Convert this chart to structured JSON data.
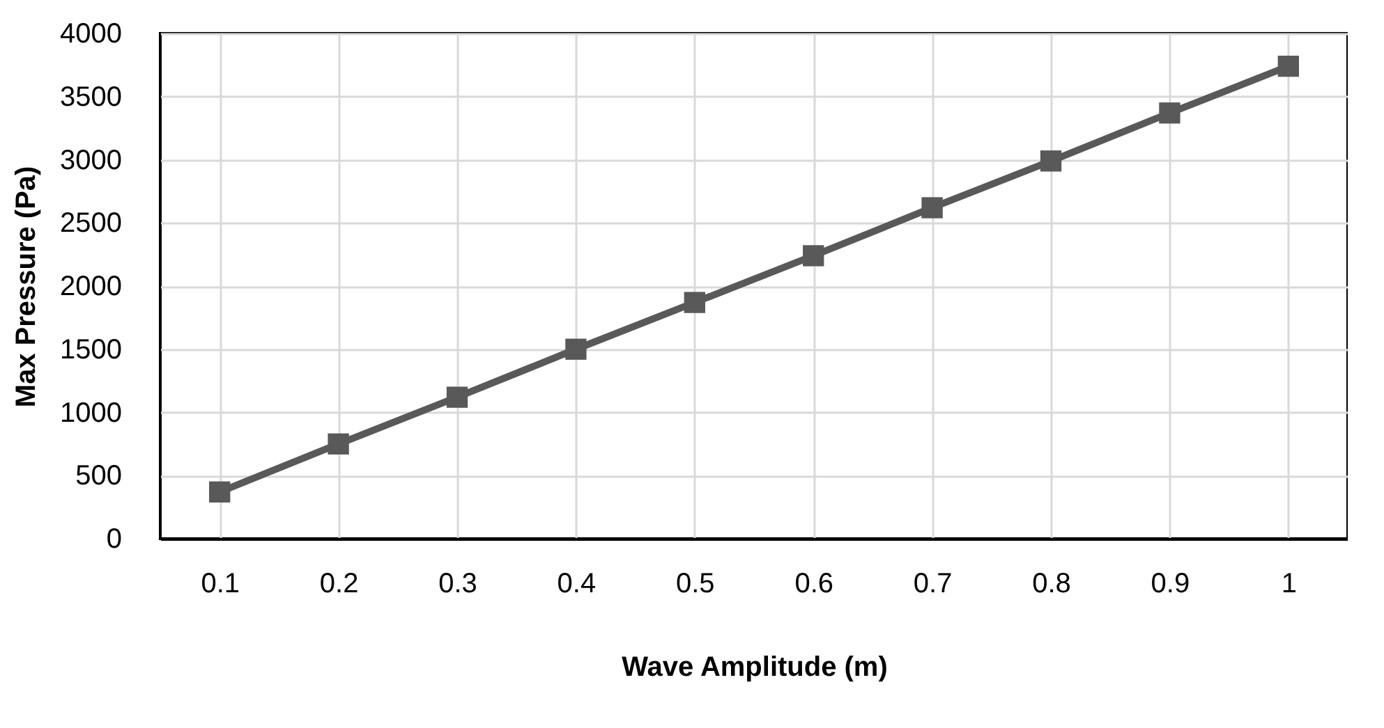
{
  "chart_data": {
    "type": "line",
    "xlabel": "Wave Amplitude (m)",
    "ylabel": "Max Pressure (Pa)",
    "categories": [
      "0.1",
      "0.2",
      "0.3",
      "0.4",
      "0.5",
      "0.6",
      "0.7",
      "0.8",
      "0.9",
      "1"
    ],
    "series": [
      {
        "color": "#595959",
        "values": [
          370,
          750,
          1120,
          1500,
          1870,
          2240,
          2620,
          2990,
          3370,
          3740
        ]
      }
    ],
    "ylim": [
      0,
      4000
    ],
    "yticks": [
      0,
      500,
      1000,
      1500,
      2000,
      2500,
      3000,
      3500,
      4000
    ],
    "grid": true,
    "marker": "square",
    "line_style": "solid"
  }
}
